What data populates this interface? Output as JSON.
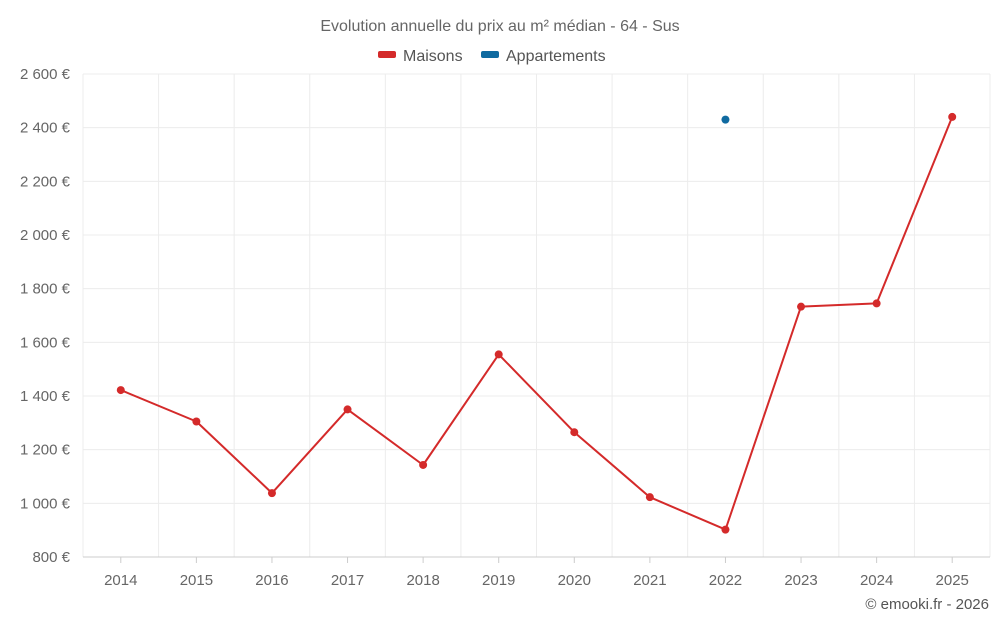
{
  "chart_data": {
    "type": "line",
    "title": "Evolution annuelle du prix au m² médian - 64 - Sus",
    "categories": [
      "2014",
      "2015",
      "2016",
      "2017",
      "2018",
      "2019",
      "2020",
      "2021",
      "2022",
      "2023",
      "2024",
      "2025"
    ],
    "series": [
      {
        "name": "Maisons",
        "color": "#d42a2a",
        "values": [
          1422,
          1305,
          1038,
          1350,
          1143,
          1555,
          1265,
          1023,
          902,
          1733,
          1745,
          2440
        ]
      },
      {
        "name": "Appartements",
        "color": "#0f6aa0",
        "values": [
          null,
          null,
          null,
          null,
          null,
          null,
          null,
          null,
          2430,
          null,
          null,
          null
        ]
      }
    ],
    "ylim": [
      800,
      2600
    ],
    "yticks": [
      800,
      1000,
      1200,
      1400,
      1600,
      1800,
      2000,
      2200,
      2400,
      2600
    ],
    "ytick_labels": [
      "800 €",
      "1 000 €",
      "1 200 €",
      "1 400 €",
      "1 600 €",
      "1 800 €",
      "2 000 €",
      "2 200 €",
      "2 400 €",
      "2 600 €"
    ],
    "legend": "top-center",
    "grid": true
  },
  "credit": "© emooki.fr - 2026"
}
